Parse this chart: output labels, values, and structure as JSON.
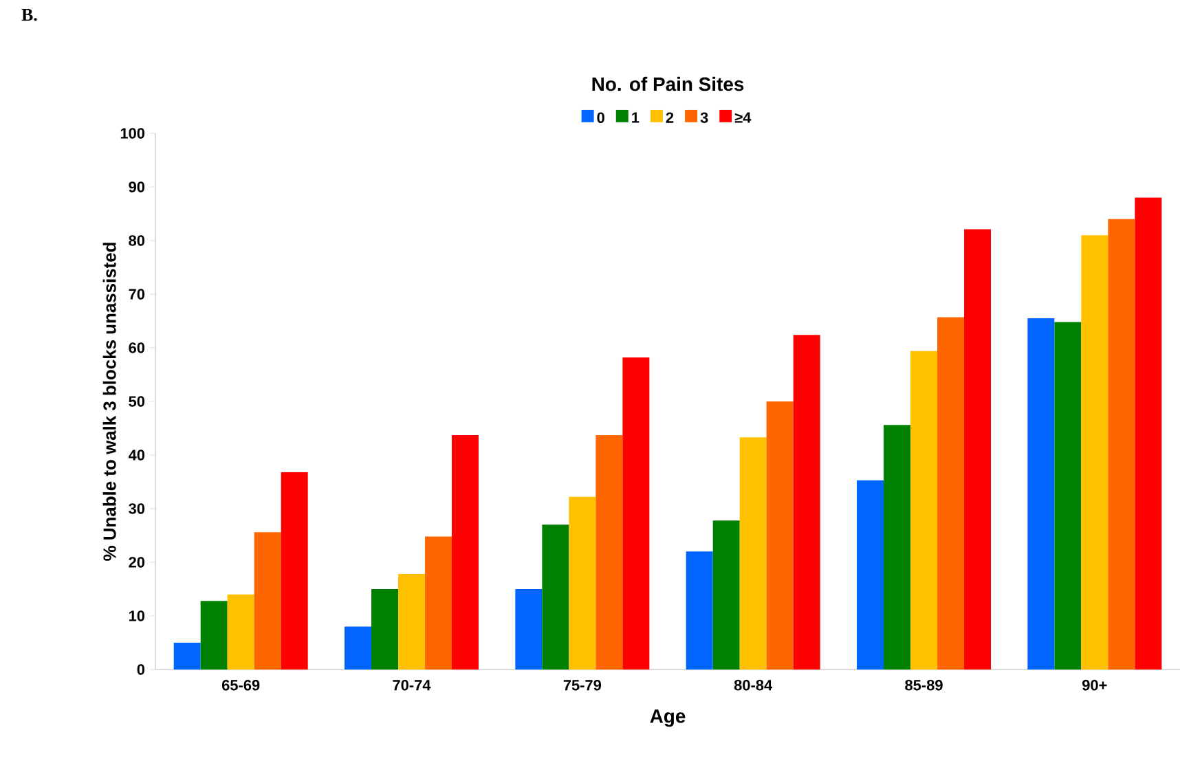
{
  "chart_data": {
    "type": "bar",
    "legend_title": "No. of Pain Sites",
    "xlabel": "Age",
    "ylabel": "% Unable to walk 3 blocks unassisted",
    "annotations": [
      "B."
    ],
    "categories": [
      "65-69",
      "70-74",
      "75-79",
      "80-84",
      "85-89",
      "90+"
    ],
    "series": [
      {
        "name": "0",
        "color": "#0066ff",
        "values": [
          5,
          8,
          15,
          22,
          35.3,
          65.5
        ]
      },
      {
        "name": "1",
        "color": "#008000",
        "values": [
          12.8,
          15,
          27,
          27.8,
          45.6,
          64.8
        ]
      },
      {
        "name": "2",
        "color": "#ffc000",
        "values": [
          14,
          17.8,
          32.2,
          43.3,
          59.4,
          81
        ]
      },
      {
        "name": "3",
        "color": "#ff6600",
        "values": [
          25.6,
          24.8,
          43.7,
          50,
          65.7,
          84
        ]
      },
      {
        "name": "≥4",
        "color": "#ff0000",
        "values": [
          36.8,
          43.7,
          58.2,
          62.4,
          82.1,
          88
        ]
      }
    ],
    "ylim": [
      0,
      100
    ],
    "yticks": [
      0,
      10,
      20,
      30,
      40,
      50,
      60,
      70,
      80,
      90,
      100
    ],
    "grid": false,
    "legend": "top"
  }
}
